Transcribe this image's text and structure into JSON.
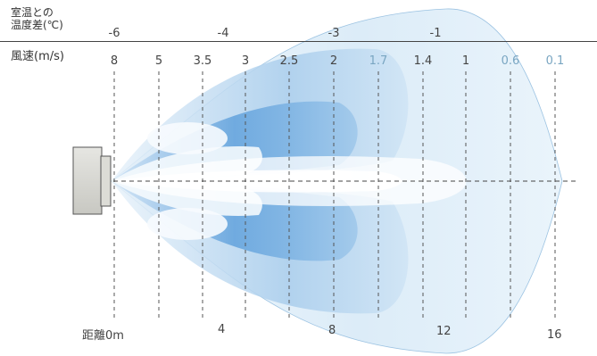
{
  "labels": {
    "temp_diff_line1": "室温との",
    "temp_diff_line2": "温度差(℃)",
    "wind_speed": "風速(m/s)",
    "distance_prefix": "距離"
  },
  "temp_diff": [
    "-6",
    "-4",
    "-3",
    "-1"
  ],
  "wind_speeds": [
    "8",
    "5",
    "3.5",
    "3",
    "2.5",
    "2",
    "1.7",
    "1.4",
    "1",
    "0.6",
    "0.1"
  ],
  "distances": [
    "0m",
    "4",
    "8",
    "12",
    "16"
  ],
  "colors": {
    "plume_deep": "#3b86cc",
    "plume_light": "#d6e8f6",
    "unit_body": "#d9d9d4",
    "rule": "#444444",
    "guide": "#555555",
    "light_value": "#7aa6c2"
  }
}
